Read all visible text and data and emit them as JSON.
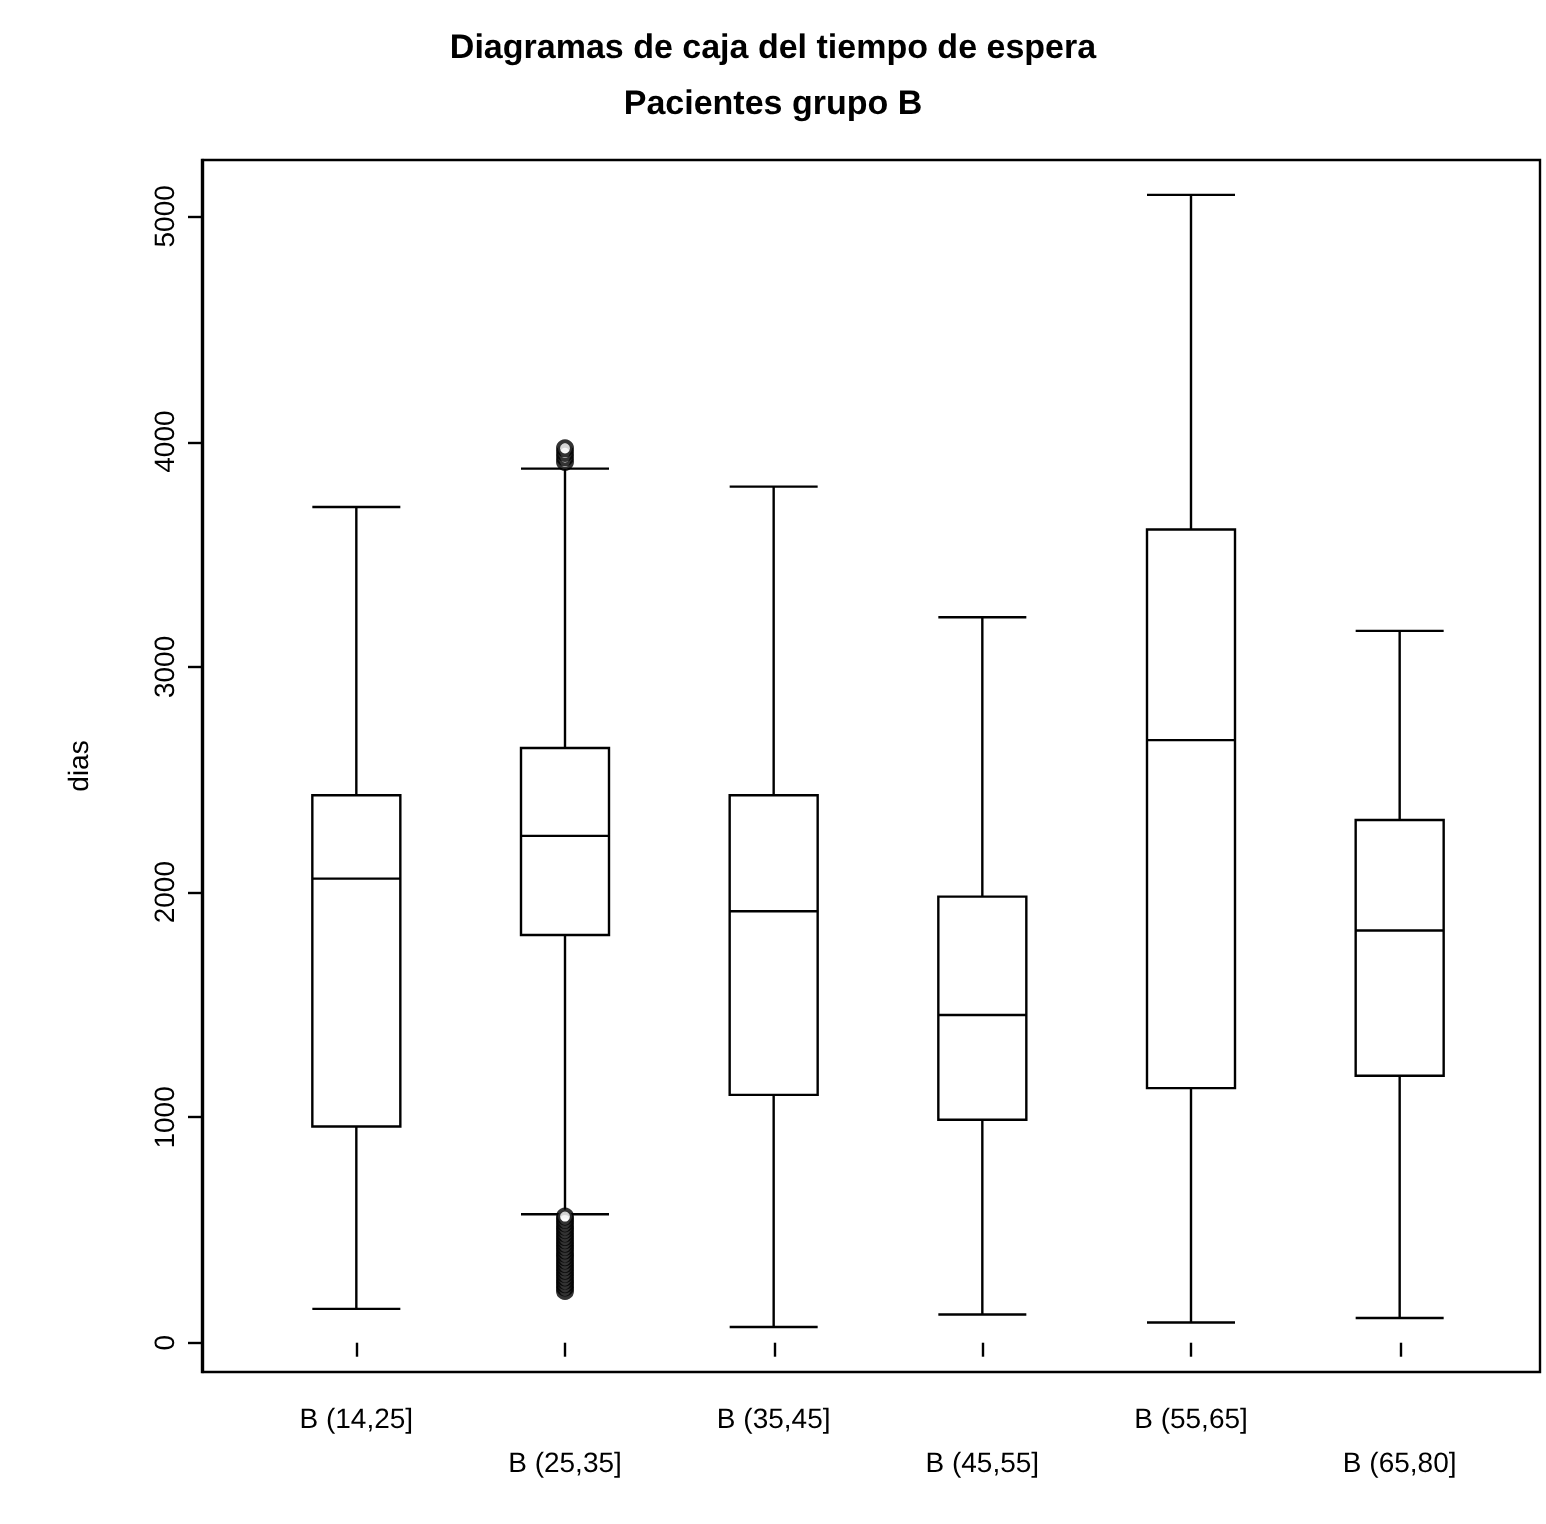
{
  "chart_data": {
    "type": "box",
    "title": "Diagramas de caja del tiempo de espera",
    "subtitle": "Pacientes grupo B",
    "ylabel": "dias",
    "categories": [
      "B (14,25]",
      "B (25,35]",
      "B (35,45]",
      "B (45,55]",
      "B (55,65]",
      "B (65,80]"
    ],
    "boxes": [
      {
        "low": 150,
        "q1": 960,
        "median": 2060,
        "q3": 2430,
        "high": 3710
      },
      {
        "low": 570,
        "q1": 1810,
        "median": 2250,
        "q3": 2640,
        "high": 3880,
        "outliers": [
          3910,
          3930,
          3950,
          3970,
          230,
          245,
          260,
          275,
          290,
          305,
          320,
          335,
          350,
          365,
          380,
          395,
          410,
          425,
          440,
          455,
          470,
          485,
          500,
          515,
          530,
          545,
          560
        ]
      },
      {
        "low": 70,
        "q1": 1100,
        "median": 1915,
        "q3": 2430,
        "high": 3800
      },
      {
        "low": 125,
        "q1": 990,
        "median": 1455,
        "q3": 1980,
        "high": 3220
      },
      {
        "low": 90,
        "q1": 1130,
        "median": 2675,
        "q3": 3610,
        "high": 5095
      },
      {
        "low": 110,
        "q1": 1185,
        "median": 1830,
        "q3": 2320,
        "high": 3160
      }
    ],
    "color": "#000000",
    "ylim": [
      -130,
      5250
    ],
    "yticks": [
      0,
      1000,
      2000,
      3000,
      4000,
      5000
    ],
    "grid": false,
    "marker": "circle"
  }
}
